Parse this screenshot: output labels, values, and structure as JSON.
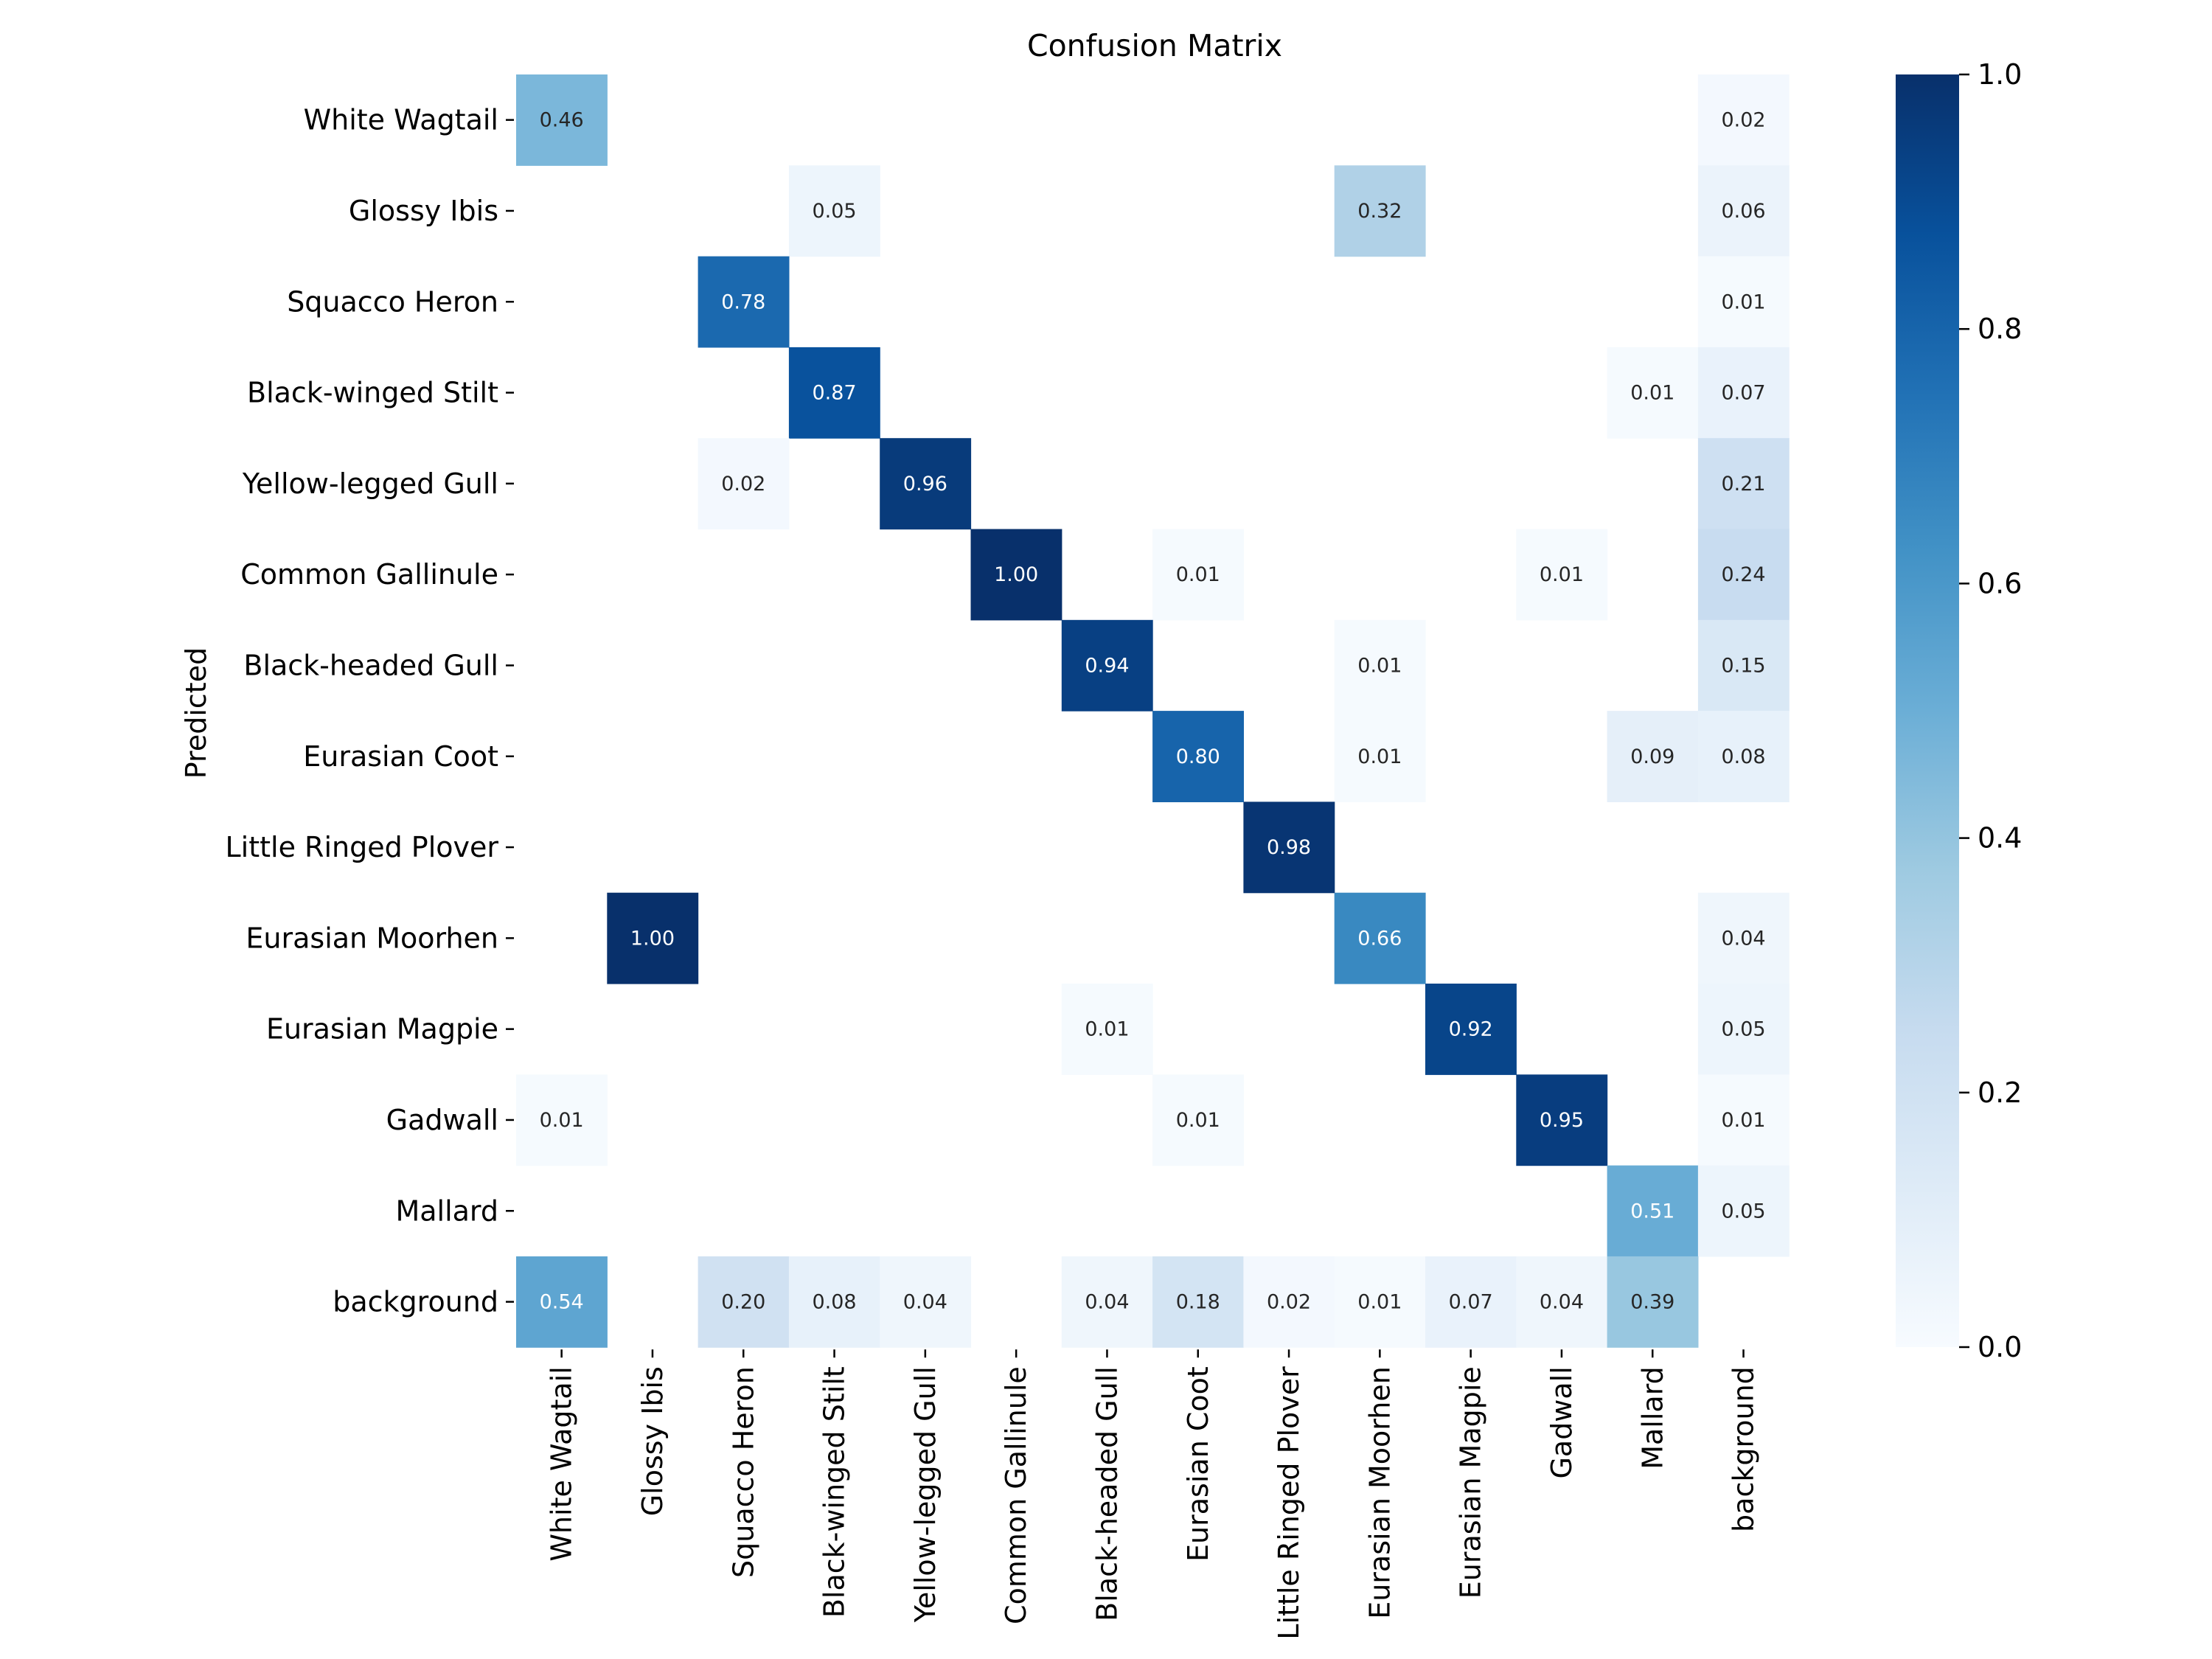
{
  "chart_data": {
    "type": "heatmap",
    "title": "Confusion Matrix",
    "xlabel": "",
    "ylabel": "Predicted",
    "row_labels": [
      "White Wagtail",
      "Glossy Ibis",
      "Squacco Heron",
      "Black-winged Stilt",
      "Yellow-legged Gull",
      "Common Gallinule",
      "Black-headed Gull",
      "Eurasian Coot",
      "Little Ringed Plover",
      "Eurasian Moorhen",
      "Eurasian Magpie",
      "Gadwall",
      "Mallard",
      "background"
    ],
    "col_labels": [
      "White Wagtail",
      "Glossy Ibis",
      "Squacco Heron",
      "Black-winged Stilt",
      "Yellow-legged Gull",
      "Common Gallinule",
      "Black-headed Gull",
      "Eurasian Coot",
      "Little Ringed Plover",
      "Eurasian Moorhen",
      "Eurasian Magpie",
      "Gadwall",
      "Mallard",
      "background"
    ],
    "values": [
      [
        0.46,
        null,
        null,
        null,
        null,
        null,
        null,
        null,
        null,
        null,
        null,
        null,
        null,
        0.02
      ],
      [
        null,
        null,
        null,
        0.05,
        null,
        null,
        null,
        null,
        null,
        0.32,
        null,
        null,
        null,
        0.06
      ],
      [
        null,
        null,
        0.78,
        null,
        null,
        null,
        null,
        null,
        null,
        null,
        null,
        null,
        null,
        0.01
      ],
      [
        null,
        null,
        null,
        0.87,
        null,
        null,
        null,
        null,
        null,
        null,
        null,
        null,
        0.01,
        0.07
      ],
      [
        null,
        null,
        0.02,
        null,
        0.96,
        null,
        null,
        null,
        null,
        null,
        null,
        null,
        null,
        0.21
      ],
      [
        null,
        null,
        null,
        null,
        null,
        1.0,
        null,
        0.01,
        null,
        null,
        null,
        0.01,
        null,
        0.24
      ],
      [
        null,
        null,
        null,
        null,
        null,
        null,
        0.94,
        null,
        null,
        0.01,
        null,
        null,
        null,
        0.15
      ],
      [
        null,
        null,
        null,
        null,
        null,
        null,
        null,
        0.8,
        null,
        0.01,
        null,
        null,
        0.09,
        0.08
      ],
      [
        null,
        null,
        null,
        null,
        null,
        null,
        null,
        null,
        0.98,
        null,
        null,
        null,
        null,
        null
      ],
      [
        null,
        1.0,
        null,
        null,
        null,
        null,
        null,
        null,
        null,
        0.66,
        null,
        null,
        null,
        0.04
      ],
      [
        null,
        null,
        null,
        null,
        null,
        null,
        0.01,
        null,
        null,
        null,
        0.92,
        null,
        null,
        0.05
      ],
      [
        0.01,
        null,
        null,
        null,
        null,
        null,
        null,
        0.01,
        null,
        null,
        null,
        0.95,
        null,
        0.01
      ],
      [
        null,
        null,
        null,
        null,
        null,
        null,
        null,
        null,
        null,
        null,
        null,
        null,
        0.51,
        0.05
      ],
      [
        0.54,
        null,
        0.2,
        0.08,
        0.04,
        null,
        0.04,
        0.18,
        0.02,
        0.01,
        0.07,
        0.04,
        0.39,
        null
      ]
    ],
    "value_format": "0.00",
    "colormap": "Blues",
    "vmin": 0.0,
    "vmax": 1.0,
    "colorbar_ticks": [
      "0.0",
      "0.2",
      "0.4",
      "0.6",
      "0.8",
      "1.0"
    ],
    "grid": false
  }
}
